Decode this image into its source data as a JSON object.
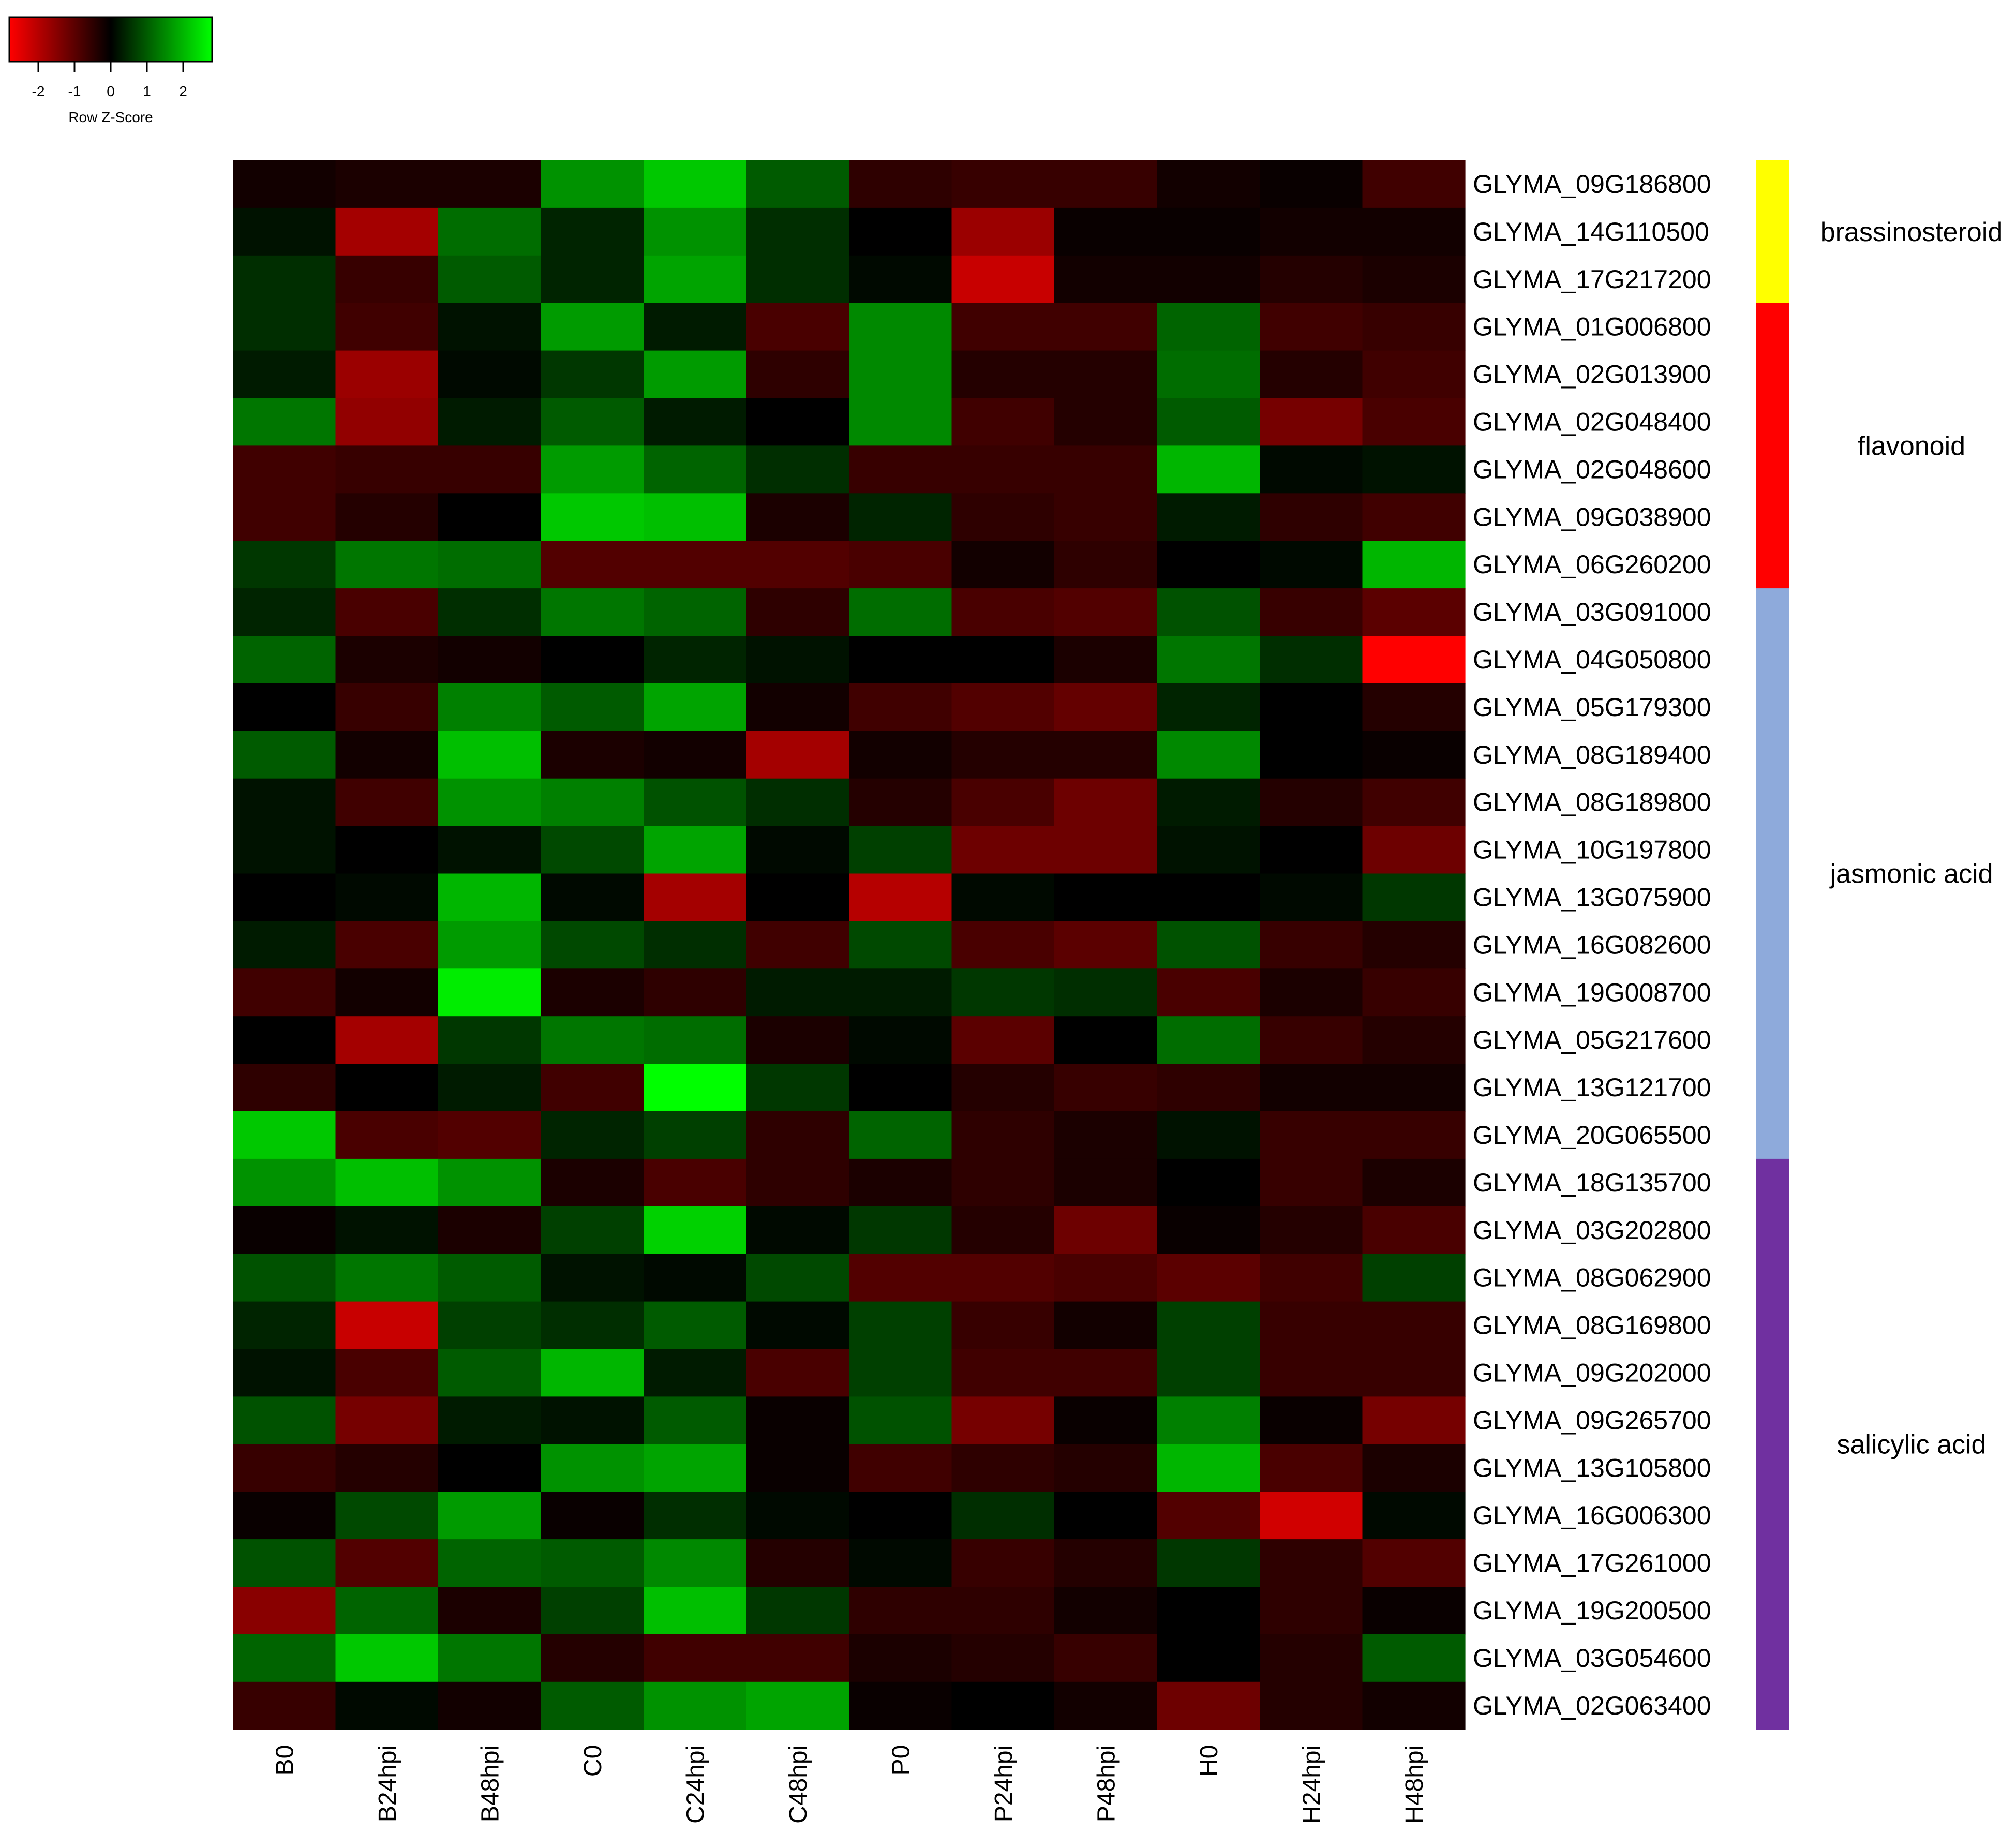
{
  "chart_data": {
    "type": "heatmap",
    "title": "",
    "legend": {
      "label": "Row Z-Score",
      "ticks": [
        "-2",
        "-1",
        "0",
        "1",
        "2"
      ],
      "range": [
        -2.8,
        2.8
      ],
      "low_color": "#ff0000",
      "mid_color": "#000000",
      "high_color": "#00ff00",
      "placement": "top-left"
    },
    "columns": [
      "B0",
      "B24hpi",
      "B48hpi",
      "C0",
      "C24hpi",
      "C48hpi",
      "P0",
      "P24hpi",
      "P48hpi",
      "H0",
      "H24hpi",
      "H48hpi"
    ],
    "rows": [
      "GLYMA_09G186800",
      "GLYMA_14G110500",
      "GLYMA_17G217200",
      "GLYMA_01G006800",
      "GLYMA_02G013900",
      "GLYMA_02G048400",
      "GLYMA_02G048600",
      "GLYMA_09G038900",
      "GLYMA_06G260200",
      "GLYMA_03G091000",
      "GLYMA_04G050800",
      "GLYMA_05G179300",
      "GLYMA_08G189400",
      "GLYMA_08G189800",
      "GLYMA_10G197800",
      "GLYMA_13G075900",
      "GLYMA_16G082600",
      "GLYMA_19G008700",
      "GLYMA_05G217600",
      "GLYMA_13G121700",
      "GLYMA_20G065500",
      "GLYMA_18G135700",
      "GLYMA_03G202800",
      "GLYMA_08G062900",
      "GLYMA_08G169800",
      "GLYMA_09G202000",
      "GLYMA_09G265700",
      "GLYMA_13G105800",
      "GLYMA_16G006300",
      "GLYMA_17G261000",
      "GLYMA_19G200500",
      "GLYMA_03G054600",
      "GLYMA_02G063400"
    ],
    "values": [
      [
        -0.2,
        -0.3,
        -0.3,
        1.6,
        2.2,
        1.0,
        -0.5,
        -0.6,
        -0.6,
        -0.2,
        -0.1,
        -0.7
      ],
      [
        0.2,
        -1.8,
        1.2,
        0.4,
        1.6,
        0.5,
        0.0,
        -1.7,
        -0.1,
        -0.1,
        -0.2,
        -0.2
      ],
      [
        0.5,
        -0.6,
        1.0,
        0.4,
        1.8,
        0.5,
        0.1,
        -2.2,
        -0.2,
        -0.2,
        -0.4,
        -0.3
      ],
      [
        0.5,
        -0.7,
        0.2,
        1.7,
        0.3,
        -0.8,
        1.5,
        -0.7,
        -0.7,
        1.1,
        -0.7,
        -0.6
      ],
      [
        0.3,
        -1.7,
        0.1,
        0.6,
        1.7,
        -0.5,
        1.5,
        -0.4,
        -0.4,
        1.2,
        -0.4,
        -0.7
      ],
      [
        1.3,
        -1.6,
        0.3,
        1.0,
        0.3,
        0.0,
        1.5,
        -0.7,
        -0.4,
        1.0,
        -1.3,
        -0.8
      ],
      [
        -0.7,
        -0.6,
        -0.6,
        1.7,
        1.1,
        0.5,
        -0.6,
        -0.6,
        -0.6,
        2.0,
        0.1,
        0.2
      ],
      [
        -0.7,
        -0.4,
        0.0,
        2.2,
        2.1,
        -0.3,
        0.4,
        -0.5,
        -0.6,
        0.3,
        -0.5,
        -0.7
      ],
      [
        0.6,
        1.3,
        1.2,
        -0.9,
        -0.9,
        -0.9,
        -0.8,
        -0.2,
        -0.5,
        0.0,
        0.1,
        2.0
      ],
      [
        0.4,
        -0.8,
        0.5,
        1.3,
        1.1,
        -0.5,
        1.2,
        -0.8,
        -0.9,
        0.9,
        -0.6,
        -1.0
      ],
      [
        1.1,
        -0.3,
        -0.2,
        0.0,
        0.4,
        0.2,
        0.0,
        0.0,
        -0.3,
        1.3,
        0.5,
        -2.8
      ],
      [
        0.0,
        -0.6,
        1.4,
        1.0,
        1.8,
        -0.2,
        -0.7,
        -0.9,
        -1.1,
        0.4,
        0.0,
        -0.4
      ],
      [
        1.0,
        -0.2,
        2.1,
        -0.3,
        -0.2,
        -1.8,
        -0.2,
        -0.4,
        -0.4,
        1.5,
        0.0,
        -0.1
      ],
      [
        0.2,
        -0.7,
        1.6,
        1.4,
        0.9,
        0.5,
        -0.4,
        -0.8,
        -1.2,
        0.3,
        -0.4,
        -0.7
      ],
      [
        0.2,
        0.0,
        0.2,
        0.8,
        1.8,
        0.1,
        0.7,
        -1.2,
        -1.2,
        0.2,
        0.0,
        -1.2
      ],
      [
        0.0,
        0.1,
        2.0,
        0.1,
        -1.8,
        0.0,
        -2.0,
        0.1,
        0.0,
        0.0,
        0.1,
        0.6
      ],
      [
        0.3,
        -0.8,
        1.7,
        0.8,
        0.5,
        -0.7,
        0.8,
        -0.8,
        -1.0,
        0.9,
        -0.6,
        -0.4
      ],
      [
        -0.7,
        -0.2,
        2.6,
        -0.3,
        -0.5,
        0.3,
        0.3,
        0.6,
        0.5,
        -0.8,
        -0.3,
        -0.6
      ],
      [
        0.0,
        -1.8,
        0.6,
        1.3,
        1.2,
        -0.3,
        0.1,
        -1.0,
        0.0,
        1.2,
        -0.6,
        -0.4
      ],
      [
        -0.5,
        0.0,
        0.3,
        -0.7,
        2.8,
        0.6,
        0.0,
        -0.4,
        -0.6,
        -0.5,
        -0.2,
        -0.2
      ],
      [
        2.2,
        -0.8,
        -0.9,
        0.4,
        0.7,
        -0.5,
        1.1,
        -0.5,
        -0.3,
        0.2,
        -0.6,
        -0.6
      ],
      [
        1.6,
        2.1,
        1.6,
        -0.3,
        -0.8,
        -0.5,
        -0.3,
        -0.5,
        -0.3,
        0.0,
        -0.6,
        -0.3
      ],
      [
        -0.1,
        0.2,
        -0.3,
        0.7,
        2.3,
        0.1,
        0.6,
        -0.4,
        -1.2,
        -0.1,
        -0.4,
        -0.8
      ],
      [
        0.9,
        1.3,
        1.0,
        0.2,
        0.1,
        0.8,
        -0.9,
        -0.9,
        -0.8,
        -1.0,
        -0.7,
        0.7
      ],
      [
        0.4,
        -2.2,
        0.7,
        0.5,
        1.0,
        0.1,
        0.7,
        -0.6,
        -0.2,
        0.7,
        -0.6,
        -0.6
      ],
      [
        0.2,
        -0.8,
        1.0,
        2.0,
        0.3,
        -0.8,
        0.7,
        -0.7,
        -0.7,
        0.7,
        -0.6,
        -0.6
      ],
      [
        0.9,
        -1.3,
        0.3,
        0.2,
        1.0,
        -0.1,
        0.9,
        -1.3,
        -0.1,
        1.4,
        -0.1,
        -1.3
      ],
      [
        -0.6,
        -0.4,
        0.0,
        1.6,
        1.8,
        -0.1,
        -0.7,
        -0.5,
        -0.4,
        2.0,
        -0.8,
        -0.3
      ],
      [
        -0.1,
        0.8,
        1.7,
        -0.1,
        0.5,
        0.1,
        0.0,
        0.5,
        0.0,
        -0.9,
        -2.3,
        0.1
      ],
      [
        0.9,
        -0.9,
        1.1,
        1.0,
        1.5,
        -0.4,
        0.1,
        -0.6,
        -0.4,
        0.6,
        -0.5,
        -0.9
      ],
      [
        -1.5,
        1.1,
        -0.3,
        0.7,
        2.1,
        0.6,
        -0.5,
        -0.5,
        -0.2,
        0.0,
        -0.5,
        -0.1
      ],
      [
        1.1,
        2.2,
        1.3,
        -0.4,
        -0.7,
        -0.7,
        -0.3,
        -0.4,
        -0.6,
        0.0,
        -0.4,
        1.0
      ],
      [
        -0.6,
        0.1,
        -0.2,
        1.0,
        1.6,
        1.8,
        -0.1,
        0.0,
        -0.2,
        -1.2,
        -0.4,
        -0.2
      ]
    ],
    "groups": [
      {
        "name": "brassinosteroid",
        "start": 0,
        "end": 2,
        "color": "#ffff00"
      },
      {
        "name": "flavonoid",
        "start": 3,
        "end": 8,
        "color": "#ff0000"
      },
      {
        "name": "jasmonic acid",
        "start": 9,
        "end": 20,
        "color": "#8eaadb"
      },
      {
        "name": "salicylic acid",
        "start": 21,
        "end": 32,
        "color": "#7030a0"
      }
    ]
  }
}
